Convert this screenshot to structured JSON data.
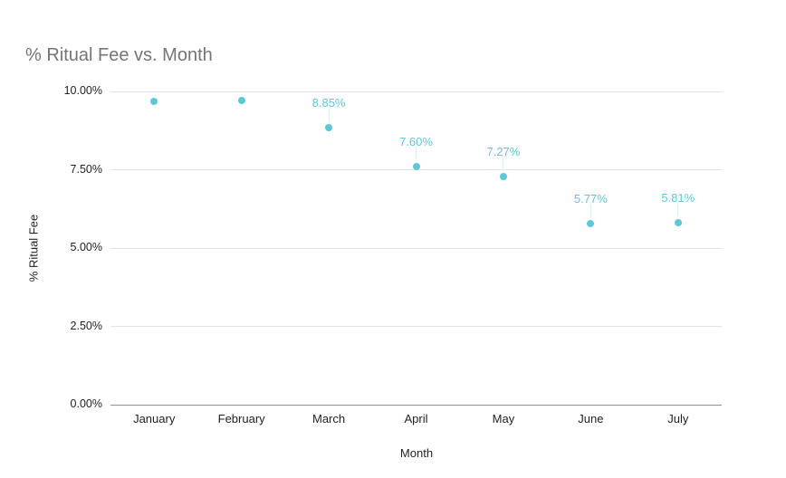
{
  "chart_data": {
    "type": "scatter",
    "title": "% Ritual Fee vs. Month",
    "xlabel": "Month",
    "ylabel": "% Ritual Fee",
    "categories": [
      "January",
      "February",
      "March",
      "April",
      "May",
      "June",
      "July"
    ],
    "series": [
      {
        "name": "% Ritual Fee",
        "values": [
          9.68,
          9.7,
          8.85,
          7.6,
          7.27,
          5.77,
          5.81
        ],
        "point_labels": [
          null,
          null,
          "8.85%",
          "7.60%",
          "7.27%",
          "5.77%",
          "5.81%"
        ]
      }
    ],
    "ylim": [
      0,
      10
    ],
    "y_ticks": [
      {
        "label": "0.00%",
        "value": 0
      },
      {
        "label": "2.50%",
        "value": 2.5
      },
      {
        "label": "5.00%",
        "value": 5
      },
      {
        "label": "7.50%",
        "value": 7.5
      },
      {
        "label": "10.00%",
        "value": 10
      }
    ],
    "grid": true,
    "legend_position": "none",
    "point_color": "#5FC6D8",
    "title_color": "#757575",
    "axis_label_color": "#222222",
    "gridline_color": "#e3e3e3",
    "baseline_color": "#8f8f8f"
  }
}
